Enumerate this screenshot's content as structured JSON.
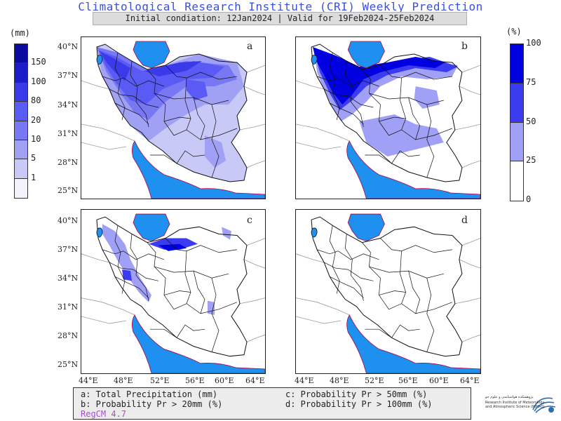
{
  "title": "Climatological Research Institute (CRI) Weekly Prediction",
  "subtitle": "Initial condiation: 12Jan2024 | Valid for 19Feb2024-25Feb2024",
  "left_bar": {
    "unit": "(mm)",
    "labels": [
      "150",
      "100",
      "80",
      "20",
      "10",
      "5",
      "1"
    ],
    "colors": [
      "#0a0a9e",
      "#1c1cc9",
      "#3a3aea",
      "#5a5af5",
      "#7878f5",
      "#a0a0f5",
      "#c9c9f7",
      "#f2f2fb"
    ]
  },
  "right_bar": {
    "unit": "(%)",
    "labels": [
      "100",
      "75",
      "50",
      "25",
      "0"
    ],
    "colors": [
      "#0000e0",
      "#3b3bf0",
      "#a0a0f7",
      "#ffffff"
    ]
  },
  "panels": [
    {
      "id": "a",
      "label": "a"
    },
    {
      "id": "b",
      "label": "b"
    },
    {
      "id": "c",
      "label": "c"
    },
    {
      "id": "d",
      "label": "d"
    }
  ],
  "lat_labels": [
    "40°N",
    "37°N",
    "34°N",
    "31°N",
    "28°N",
    "25°N"
  ],
  "lon_labels": [
    "44°E",
    "48°E",
    "52°E",
    "56°E",
    "60°E",
    "64°E"
  ],
  "legend": {
    "a": "a: Total Precipitation (mm)",
    "b": "b: Probability Pr > 20mm (%)",
    "c": "c: Probability Pr > 50mm (%)",
    "d": "d: Probability Pr > 100mm (%)",
    "model": "RegCM 4.7"
  },
  "logo": {
    "line1": "پژوهشکده هواشناسی و علوم جو",
    "line2": "Research Institute of Meteorology",
    "line3": "and Atmospheric Science (RIMAS)"
  }
}
